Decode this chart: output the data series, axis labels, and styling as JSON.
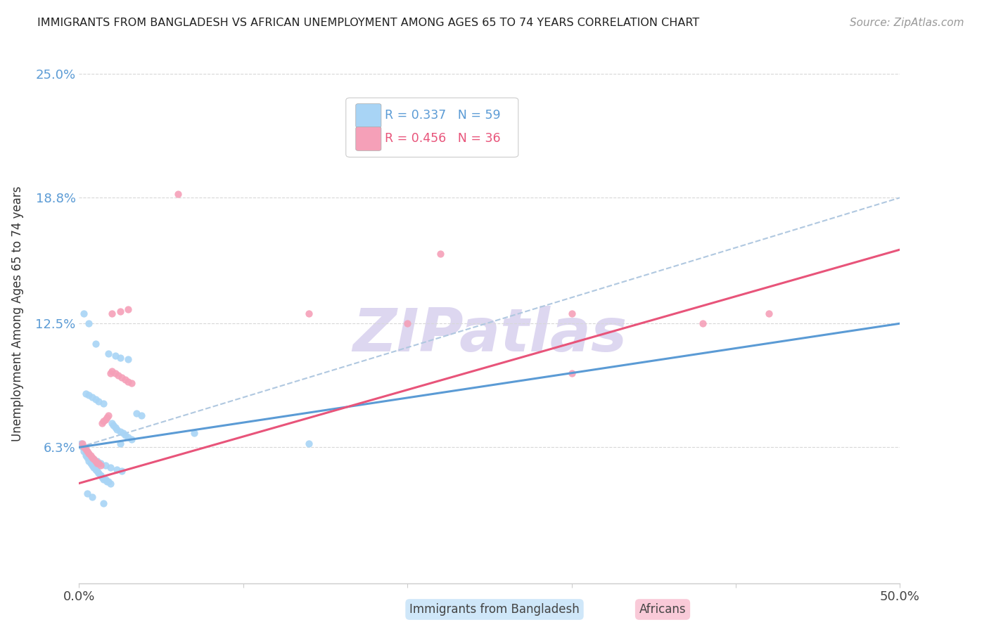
{
  "title": "IMMIGRANTS FROM BANGLADESH VS AFRICAN UNEMPLOYMENT AMONG AGES 65 TO 74 YEARS CORRELATION CHART",
  "source": "Source: ZipAtlas.com",
  "ylabel": "Unemployment Among Ages 65 to 74 years",
  "xlim": [
    0.0,
    0.5
  ],
  "ylim": [
    -0.005,
    0.265
  ],
  "color_bangladesh": "#a8d4f5",
  "color_african": "#f5a0b8",
  "color_bd_line": "#5b9bd5",
  "color_af_line": "#e8547a",
  "color_dash": "#b0c8e0",
  "watermark_color": "#d8d0ee",
  "bg_color": "#ffffff",
  "grid_color": "#e0e0e0",
  "ytick_color": "#5b9bd5",
  "bd_scatter_x": [
    0.001,
    0.002,
    0.003,
    0.004,
    0.005,
    0.006,
    0.007,
    0.008,
    0.009,
    0.01,
    0.011,
    0.012,
    0.013,
    0.014,
    0.015,
    0.016,
    0.017,
    0.018,
    0.019,
    0.02,
    0.021,
    0.022,
    0.023,
    0.025,
    0.027,
    0.028,
    0.03,
    0.032,
    0.035,
    0.038,
    0.004,
    0.006,
    0.008,
    0.01,
    0.012,
    0.015,
    0.018,
    0.022,
    0.025,
    0.03,
    0.004,
    0.005,
    0.007,
    0.009,
    0.011,
    0.013,
    0.016,
    0.019,
    0.023,
    0.026,
    0.005,
    0.008,
    0.015,
    0.025,
    0.07,
    0.14,
    0.003,
    0.006,
    0.01
  ],
  "bd_scatter_y": [
    0.065,
    0.063,
    0.061,
    0.059,
    0.058,
    0.056,
    0.055,
    0.054,
    0.053,
    0.052,
    0.051,
    0.05,
    0.049,
    0.048,
    0.047,
    0.047,
    0.046,
    0.046,
    0.045,
    0.075,
    0.074,
    0.073,
    0.072,
    0.071,
    0.07,
    0.069,
    0.068,
    0.067,
    0.08,
    0.079,
    0.09,
    0.089,
    0.088,
    0.087,
    0.086,
    0.085,
    0.11,
    0.109,
    0.108,
    0.107,
    0.06,
    0.059,
    0.058,
    0.057,
    0.056,
    0.055,
    0.054,
    0.053,
    0.052,
    0.051,
    0.04,
    0.038,
    0.035,
    0.065,
    0.07,
    0.065,
    0.13,
    0.125,
    0.115
  ],
  "af_scatter_x": [
    0.002,
    0.003,
    0.004,
    0.005,
    0.006,
    0.007,
    0.008,
    0.009,
    0.01,
    0.011,
    0.012,
    0.013,
    0.014,
    0.015,
    0.016,
    0.017,
    0.018,
    0.019,
    0.02,
    0.022,
    0.024,
    0.026,
    0.028,
    0.03,
    0.032,
    0.02,
    0.025,
    0.03,
    0.06,
    0.14,
    0.2,
    0.3,
    0.38,
    0.42,
    0.22,
    0.3
  ],
  "af_scatter_y": [
    0.065,
    0.063,
    0.062,
    0.061,
    0.06,
    0.059,
    0.058,
    0.057,
    0.056,
    0.055,
    0.055,
    0.054,
    0.075,
    0.076,
    0.077,
    0.078,
    0.079,
    0.1,
    0.101,
    0.1,
    0.099,
    0.098,
    0.097,
    0.096,
    0.095,
    0.13,
    0.131,
    0.132,
    0.19,
    0.13,
    0.125,
    0.13,
    0.125,
    0.13,
    0.16,
    0.1
  ],
  "bd_line_x0": 0.0,
  "bd_line_x1": 0.5,
  "bd_line_y0": 0.063,
  "bd_line_y1": 0.125,
  "af_line_x0": 0.0,
  "af_line_x1": 0.5,
  "af_line_y0": 0.045,
  "af_line_y1": 0.162,
  "dash_line_x0": 0.0,
  "dash_line_x1": 0.5,
  "dash_line_y0": 0.063,
  "dash_line_y1": 0.188
}
